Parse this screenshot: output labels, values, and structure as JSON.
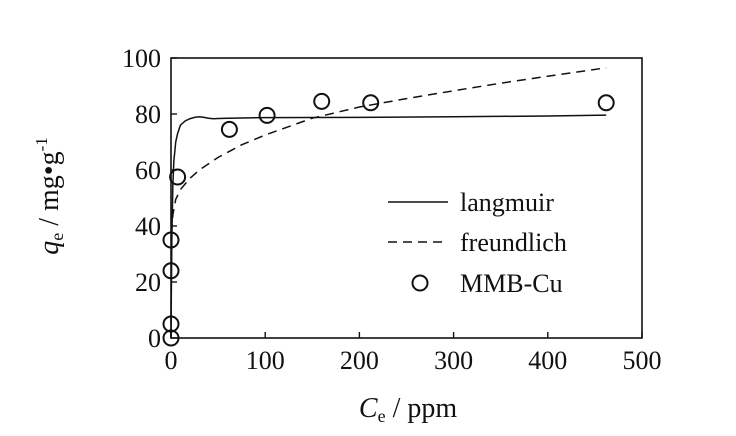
{
  "chart_data": {
    "type": "scatter",
    "title": "",
    "xlabel": "C",
    "xlabel_sub": "e",
    "xlabel_unit": " / ppm",
    "ylabel": "q",
    "ylabel_sub": "e",
    "ylabel_unit": " / mg•g",
    "ylabel_sup": "-1",
    "xlim": [
      0,
      500
    ],
    "ylim": [
      0,
      100
    ],
    "xticks": [
      0,
      100,
      200,
      300,
      400,
      500
    ],
    "yticks": [
      0,
      20,
      40,
      60,
      80,
      100
    ],
    "grid": false,
    "legend_position": "center-right",
    "series": [
      {
        "name": "langmuir",
        "style": "solid-line",
        "x": [
          0,
          0.5,
          1,
          2,
          3,
          5,
          7,
          10,
          15,
          20,
          25,
          30,
          35,
          40,
          45,
          50,
          60,
          100,
          200,
          300,
          400,
          462
        ],
        "y": [
          0,
          22,
          38,
          55,
          63,
          70,
          73,
          76,
          77.5,
          78.3,
          78.8,
          79,
          78.8,
          78.5,
          78.3,
          78.4,
          78.5,
          78.7,
          78.8,
          79,
          79.3,
          79.6
        ]
      },
      {
        "name": "freundlich",
        "style": "dashed-line",
        "x": [
          0,
          0.5,
          1,
          2,
          5,
          10,
          20,
          30,
          50,
          75,
          100,
          150,
          200,
          250,
          300,
          350,
          400,
          462
        ],
        "y": [
          0,
          34,
          40,
          44,
          49.5,
          53,
          57,
          60,
          64.5,
          69,
          72.5,
          78.5,
          82.5,
          85.5,
          88.3,
          91,
          93.5,
          96.5
        ]
      },
      {
        "name": "MMB-Cu",
        "style": "open-circle",
        "x": [
          0,
          0,
          0,
          0,
          7,
          62,
          102,
          160,
          212,
          462
        ],
        "y": [
          0,
          5,
          24,
          35,
          57.5,
          74.5,
          79.5,
          84.5,
          84,
          84
        ]
      }
    ]
  }
}
